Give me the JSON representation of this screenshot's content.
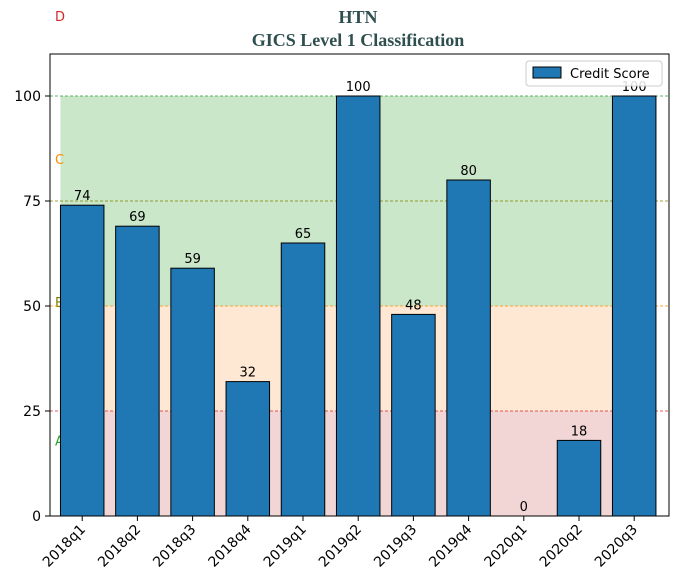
{
  "chart_data": {
    "type": "bar",
    "title": "HTN",
    "subtitle": "GICS Level 1 Classification",
    "categories": [
      "2018q1",
      "2018q2",
      "2018q3",
      "2018q4",
      "2019q1",
      "2019q2",
      "2019q3",
      "2019q4",
      "2020q1",
      "2020q2",
      "2020q3"
    ],
    "series": [
      {
        "name": "Credit Score",
        "values": [
          74,
          69,
          59,
          32,
          65,
          100,
          48,
          80,
          0,
          18,
          100
        ],
        "color": "#1f77b4"
      }
    ],
    "ylim": [
      0,
      110
    ],
    "yticks": [
      0,
      25,
      50,
      75,
      100
    ],
    "legend_position": "top-right",
    "bands": [
      {
        "label": "A",
        "from": 0,
        "to": 25,
        "fill": "#cd5c5c",
        "label_color": "#2ca02c",
        "label_value": 18
      },
      {
        "label": "B",
        "from": 25,
        "to": 50,
        "fill": "#ffa54f",
        "label_color": "#808000",
        "label_value": 51
      },
      {
        "label": "C",
        "from": 50,
        "to": 100,
        "fill": "#2ca02c",
        "label_color": "#ff8c00",
        "label_value": 85
      },
      {
        "label": "D",
        "from": 100,
        "to": 110,
        "fill": "none",
        "label_color": "#d62728",
        "label_value": 119
      }
    ],
    "threshold_lines": [
      {
        "value": 25,
        "color": "#d62728"
      },
      {
        "value": 50,
        "color": "#ff8c00"
      },
      {
        "value": 75,
        "color": "#808000"
      },
      {
        "value": 100,
        "color": "#2ca02c"
      }
    ]
  }
}
